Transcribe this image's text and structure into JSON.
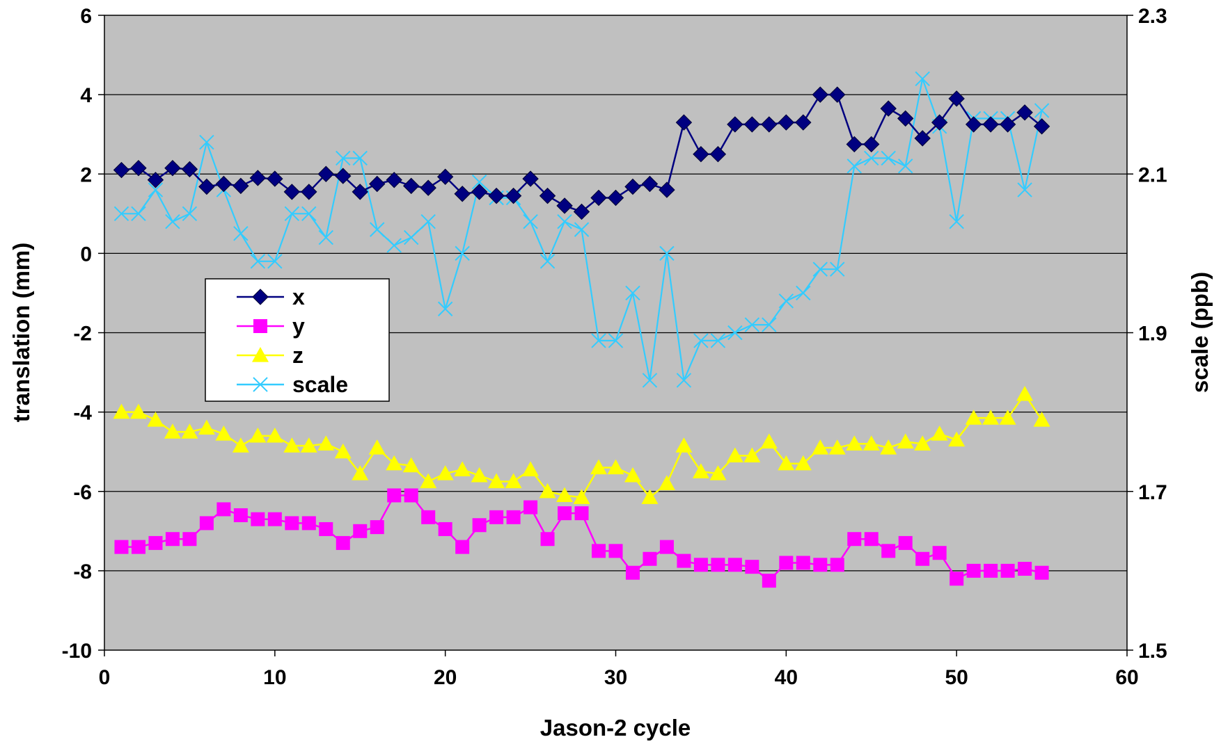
{
  "chart_data": {
    "type": "line",
    "title": "",
    "xlabel": "Jason-2 cycle",
    "ylabel": "translation (mm)",
    "y2label": "scale (ppb)",
    "xlim": [
      0,
      60
    ],
    "ylim": [
      -10,
      6
    ],
    "y2lim": [
      1.5,
      2.3
    ],
    "xticks": [
      "0",
      "10",
      "20",
      "30",
      "40",
      "50",
      "60"
    ],
    "yticks": [
      "6",
      "4",
      "2",
      "0",
      "-2",
      "-4",
      "-6",
      "-8",
      "-10"
    ],
    "y2ticks": [
      "2.3",
      "2.1",
      "1.9",
      "1.7",
      "1.5"
    ],
    "grid": "horizontal",
    "plot_background": "#c0c0c0",
    "legend_position": "center-left",
    "x": [
      1,
      2,
      3,
      4,
      5,
      6,
      7,
      8,
      9,
      10,
      11,
      12,
      13,
      14,
      15,
      16,
      17,
      18,
      19,
      20,
      21,
      22,
      23,
      24,
      25,
      26,
      27,
      28,
      29,
      30,
      31,
      32,
      33,
      34,
      35,
      36,
      37,
      38,
      39,
      40,
      41,
      42,
      43,
      44,
      45,
      46,
      47,
      48,
      49,
      50,
      51,
      52,
      53,
      54,
      55
    ],
    "series": [
      {
        "name": "x",
        "axis": "left",
        "marker": "diamond",
        "color": "#000080",
        "values": [
          2.1,
          2.15,
          1.85,
          2.15,
          2.12,
          1.68,
          1.75,
          1.7,
          1.9,
          1.88,
          1.55,
          1.55,
          2.0,
          1.95,
          1.55,
          1.75,
          1.85,
          1.7,
          1.65,
          1.93,
          1.5,
          1.55,
          1.45,
          1.45,
          1.88,
          1.45,
          1.2,
          1.05,
          1.4,
          1.4,
          1.68,
          1.75,
          1.6,
          3.3,
          2.5,
          2.5,
          3.25,
          3.25,
          3.25,
          3.3,
          3.3,
          4.0,
          4.0,
          2.75,
          2.75,
          3.65,
          3.4,
          2.9,
          3.3,
          3.9,
          3.25,
          3.25,
          3.25,
          3.55,
          3.2
        ]
      },
      {
        "name": "y",
        "axis": "left",
        "marker": "square",
        "color": "#ff00ff",
        "values": [
          -7.4,
          -7.4,
          -7.3,
          -7.2,
          -7.2,
          -6.8,
          -6.45,
          -6.6,
          -6.7,
          -6.7,
          -6.8,
          -6.8,
          -6.95,
          -7.3,
          -7.0,
          -6.9,
          -6.1,
          -6.1,
          -6.65,
          -6.95,
          -7.4,
          -6.85,
          -6.65,
          -6.65,
          -6.4,
          -7.2,
          -6.55,
          -6.55,
          -7.5,
          -7.5,
          -8.05,
          -7.7,
          -7.4,
          -7.75,
          -7.85,
          -7.85,
          -7.85,
          -7.9,
          -8.25,
          -7.8,
          -7.8,
          -7.85,
          -7.85,
          -7.2,
          -7.2,
          -7.5,
          -7.3,
          -7.7,
          -7.55,
          -8.2,
          -8.0,
          -8.0,
          -8.0,
          -7.95,
          -8.05
        ]
      },
      {
        "name": "z",
        "axis": "left",
        "marker": "triangle",
        "color": "#ffff00",
        "values": [
          -4.0,
          -4.0,
          -4.2,
          -4.5,
          -4.5,
          -4.4,
          -4.55,
          -4.85,
          -4.6,
          -4.6,
          -4.85,
          -4.85,
          -4.8,
          -5.0,
          -5.55,
          -4.9,
          -5.3,
          -5.35,
          -5.75,
          -5.55,
          -5.45,
          -5.6,
          -5.75,
          -5.75,
          -5.45,
          -6.0,
          -6.1,
          -6.15,
          -5.4,
          -5.4,
          -5.6,
          -6.15,
          -5.8,
          -4.85,
          -5.5,
          -5.55,
          -5.1,
          -5.1,
          -4.75,
          -5.3,
          -5.3,
          -4.9,
          -4.9,
          -4.8,
          -4.8,
          -4.9,
          -4.75,
          -4.8,
          -4.55,
          -4.7,
          -4.15,
          -4.15,
          -4.15,
          -3.55,
          -4.2
        ]
      },
      {
        "name": "scale",
        "axis": "right",
        "marker": "x",
        "color": "#33ccff",
        "values": [
          2.05,
          2.05,
          2.08,
          2.04,
          2.05,
          2.14,
          2.08,
          2.025,
          1.99,
          1.99,
          2.05,
          2.05,
          2.02,
          2.12,
          2.12,
          2.03,
          2.01,
          2.02,
          2.04,
          1.93,
          2.0,
          2.09,
          2.07,
          2.07,
          2.04,
          1.99,
          2.04,
          2.03,
          1.89,
          1.89,
          1.95,
          1.84,
          2.0,
          1.84,
          1.89,
          1.89,
          1.9,
          1.91,
          1.91,
          1.94,
          1.95,
          1.98,
          1.98,
          2.11,
          2.12,
          2.12,
          2.11,
          2.22,
          2.16,
          2.04,
          2.17,
          2.17,
          2.17,
          2.08,
          2.18
        ]
      }
    ]
  }
}
